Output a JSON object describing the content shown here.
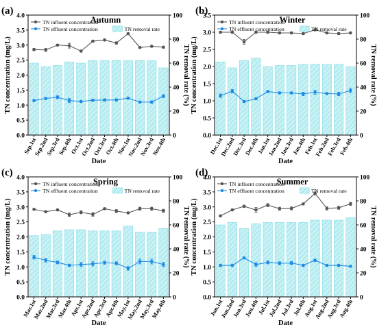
{
  "colors": {
    "influent": "#555555",
    "effluent": "#1e88e5",
    "bar_fill": "#c8f1f4",
    "bar_hatch": "#7fdde6",
    "axis": "#000000"
  },
  "legend": {
    "influent": "TN influent concentration",
    "effluent": "TN effluent concentration",
    "removal": "TN removal rate"
  },
  "axes": {
    "ylabel_left": "TN concentration (mg/L)",
    "ylabel_right": "TN removal rate (%)",
    "xlabel": "Date"
  },
  "chart_data": [
    {
      "panel_label": "(a)",
      "title": "Autumn",
      "type": "bar+line",
      "xlabel": "Date",
      "ylabel": "TN concentration (mg/L)",
      "ylabel_right": "TN removal rate (%)",
      "ylim": [
        0,
        4.0
      ],
      "ylim_right": [
        0,
        100
      ],
      "yticks": [
        "0.0",
        "0.5",
        "1.0",
        "1.5",
        "2.0",
        "2.5",
        "3.0",
        "3.5",
        "4.0"
      ],
      "yticks_right": [
        "0",
        "20",
        "40",
        "60",
        "80",
        "100"
      ],
      "categories": [
        "Sep.1st",
        "Sep.2nd",
        "Sep.3rd",
        "Sep.4th",
        "Oct.1st",
        "Oct.2nd",
        "Oct.3rd",
        "Oct.4th",
        "Nov.1st",
        "Nov.2nd",
        "Nov.3rd",
        "Nov.4th"
      ],
      "series": [
        {
          "name": "TN influent concentration",
          "kind": "line",
          "axis": "left",
          "values": [
            2.85,
            2.84,
            3.0,
            2.98,
            2.8,
            3.13,
            3.17,
            3.07,
            3.38,
            2.92,
            2.96,
            2.93
          ],
          "errors": [
            0.04,
            0.05,
            0.03,
            0.08,
            0.03,
            0.03,
            0.03,
            0.04,
            0.03,
            0.03,
            0.03,
            0.03
          ]
        },
        {
          "name": "TN effluent concentration",
          "kind": "line",
          "axis": "left",
          "values": [
            1.15,
            1.22,
            1.26,
            1.15,
            1.12,
            1.16,
            1.17,
            1.17,
            1.23,
            1.1,
            1.1,
            1.3
          ],
          "errors": [
            0.03,
            0.03,
            0.05,
            0.07,
            0.03,
            0.04,
            0.04,
            0.04,
            0.03,
            0.03,
            0.04,
            0.05
          ]
        },
        {
          "name": "TN removal rate",
          "kind": "bar",
          "axis": "right",
          "values": [
            60,
            57,
            58,
            61,
            60,
            62,
            62,
            62,
            62,
            62,
            62,
            56
          ]
        }
      ]
    },
    {
      "panel_label": "(b)",
      "title": "Winter",
      "type": "bar+line",
      "xlabel": "Date",
      "ylabel": "TN concentration (mg/L)",
      "ylabel_right": "TN removal rate (%)",
      "ylim": [
        0,
        3.5
      ],
      "ylim_right": [
        0,
        100
      ],
      "yticks": [
        "0.0",
        "0.5",
        "1.0",
        "1.5",
        "2.0",
        "2.5",
        "3.0",
        "3.5"
      ],
      "yticks_right": [
        "0",
        "20",
        "40",
        "60",
        "80",
        "100"
      ],
      "categories": [
        "Dec.1st",
        "Dec.2nd",
        "Dec.3rd",
        "Dec.4th",
        "Jan.1st",
        "Jan.2nd",
        "Jan.3rd",
        "Jan.4th",
        "Feb.1st",
        "Feb.2nd",
        "Feb.3rd",
        "Feb.4th"
      ],
      "series": [
        {
          "name": "TN influent concentration",
          "kind": "line",
          "axis": "left",
          "values": [
            3.0,
            3.0,
            2.72,
            3.0,
            3.0,
            2.98,
            2.98,
            2.96,
            3.07,
            2.98,
            2.96,
            2.98
          ],
          "errors": [
            0.03,
            0.03,
            0.07,
            0.03,
            0.03,
            0.03,
            0.03,
            0.03,
            0.03,
            0.03,
            0.03,
            0.03
          ]
        },
        {
          "name": "TN effluent concentration",
          "kind": "line",
          "axis": "left",
          "values": [
            1.15,
            1.28,
            0.98,
            1.06,
            1.27,
            1.23,
            1.23,
            1.2,
            1.25,
            1.21,
            1.2,
            1.3
          ],
          "errors": [
            0.05,
            0.05,
            0.03,
            0.03,
            0.03,
            0.03,
            0.03,
            0.05,
            0.06,
            0.03,
            0.05,
            0.07
          ]
        },
        {
          "name": "TN removal rate",
          "kind": "bar",
          "axis": "right",
          "values": [
            61,
            56,
            62,
            64,
            57,
            58,
            58,
            59,
            59,
            59,
            59,
            57
          ]
        }
      ]
    },
    {
      "panel_label": "(c)",
      "title": "Spring",
      "type": "bar+line",
      "xlabel": "Date",
      "ylabel": "TN concentration (mg/L)",
      "ylabel_right": "TN removal rate (%)",
      "ylim": [
        0,
        4.0
      ],
      "ylim_right": [
        0,
        100
      ],
      "yticks": [
        "0.0",
        "0.5",
        "1.0",
        "1.5",
        "2.0",
        "2.5",
        "3.0",
        "3.5",
        "4.0"
      ],
      "yticks_right": [
        "0",
        "20",
        "40",
        "60",
        "80",
        "100"
      ],
      "categories": [
        "Mar.1st",
        "Mar.2nd",
        "Mar.3rd",
        "Mar.4th",
        "Apr.1st",
        "Apr.2nd",
        "Apr.3rd",
        "Apr.4th",
        "May.1st",
        "May.2nd",
        "May.3rd",
        "May.4th"
      ],
      "series": [
        {
          "name": "TN influent concentration",
          "kind": "line",
          "axis": "left",
          "values": [
            2.92,
            2.84,
            2.9,
            2.74,
            2.82,
            2.75,
            2.94,
            2.86,
            2.8,
            2.94,
            2.94,
            2.87
          ],
          "errors": [
            0.03,
            0.03,
            0.03,
            0.06,
            0.05,
            0.06,
            0.03,
            0.05,
            0.03,
            0.05,
            0.05,
            0.05
          ]
        },
        {
          "name": "TN effluent concentration",
          "kind": "line",
          "axis": "left",
          "values": [
            1.32,
            1.22,
            1.15,
            1.05,
            1.08,
            1.1,
            1.14,
            1.12,
            0.95,
            1.18,
            1.18,
            1.08
          ],
          "errors": [
            0.06,
            0.06,
            0.05,
            0.04,
            0.07,
            0.07,
            0.05,
            0.05,
            0.06,
            0.08,
            0.08,
            0.07
          ]
        },
        {
          "name": "TN removal rate",
          "kind": "bar",
          "axis": "right",
          "values": [
            51,
            52,
            55,
            56,
            56,
            55,
            55,
            55,
            59,
            54,
            54,
            57
          ]
        }
      ]
    },
    {
      "panel_label": "(d)",
      "title": "Summer",
      "type": "bar+line",
      "xlabel": "Date",
      "ylabel": "TN concentration (mg/L)",
      "ylabel_right": "TN removal rate (%)",
      "ylim": [
        0,
        4.0
      ],
      "ylim_right": [
        0,
        100
      ],
      "yticks": [
        "0.0",
        "0.5",
        "1.0",
        "1.5",
        "2.0",
        "2.5",
        "3.0",
        "3.5",
        "4.0"
      ],
      "yticks_right": [
        "0",
        "20",
        "40",
        "60",
        "80",
        "100"
      ],
      "categories": [
        "Jun.1st",
        "Jun.2nd",
        "Jun.3rd",
        "Jun.4th",
        "Jul.1st",
        "Jul.2nd",
        "Jul.3rd",
        "Jul.4th",
        "Aug.1st",
        "Aug.2nd",
        "Aug.3rd",
        "Aug.4th"
      ],
      "series": [
        {
          "name": "TN influent concentration",
          "kind": "line",
          "axis": "left",
          "values": [
            2.7,
            2.9,
            3.02,
            2.9,
            3.06,
            2.94,
            2.95,
            3.1,
            3.45,
            2.95,
            2.97,
            3.1
          ],
          "errors": [
            0.03,
            0.03,
            0.04,
            0.08,
            0.05,
            0.05,
            0.05,
            0.03,
            0.05,
            0.05,
            0.05,
            0.05
          ]
        },
        {
          "name": "TN effluent concentration",
          "kind": "line",
          "axis": "left",
          "values": [
            1.05,
            1.05,
            1.3,
            1.08,
            1.15,
            1.12,
            1.13,
            1.05,
            1.22,
            1.05,
            1.05,
            1.02
          ],
          "errors": [
            0.03,
            0.03,
            0.03,
            0.06,
            0.05,
            0.05,
            0.05,
            0.03,
            0.04,
            0.03,
            0.03,
            0.03
          ]
        },
        {
          "name": "TN removal rate",
          "kind": "bar",
          "axis": "right",
          "values": [
            60,
            62,
            57,
            61,
            62,
            62,
            62,
            62,
            64,
            64,
            64,
            66
          ]
        }
      ]
    }
  ]
}
